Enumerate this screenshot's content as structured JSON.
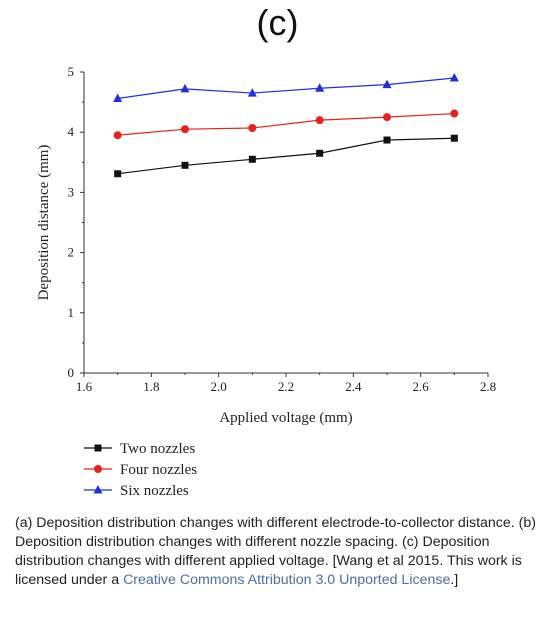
{
  "panel_label": "(c)",
  "chart_data": {
    "type": "line",
    "xlabel": "Applied voltage (mm)",
    "ylabel": "Deposition distance (mm)",
    "xlim": [
      1.6,
      2.8
    ],
    "ylim": [
      0,
      5
    ],
    "xticks": [
      "1.6",
      "1.8",
      "2.0",
      "2.2",
      "2.4",
      "2.6",
      "2.8"
    ],
    "yticks": [
      "0",
      "1",
      "2",
      "3",
      "4",
      "5"
    ],
    "x": [
      1.7,
      1.9,
      2.1,
      2.3,
      2.5,
      2.7
    ],
    "grid": false,
    "legend_position": "bottom-left",
    "series": [
      {
        "name": "Two nozzles",
        "marker": "square",
        "color": "#111111",
        "values": [
          3.31,
          3.45,
          3.55,
          3.65,
          3.87,
          3.9
        ]
      },
      {
        "name": "Four nozzles",
        "marker": "circle",
        "color": "#e8211b",
        "values": [
          3.95,
          4.05,
          4.07,
          4.2,
          4.25,
          4.31
        ]
      },
      {
        "name": "Six nozzles",
        "marker": "triangle",
        "color": "#1f2fe0",
        "values": [
          4.56,
          4.72,
          4.65,
          4.73,
          4.79,
          4.9
        ]
      }
    ]
  },
  "caption": {
    "text": "(a) Deposition distribution changes with different electrode-to-collector distance. (b) Deposition distribution changes with different nozzle spacing. (c) Deposition distribution changes with different applied voltage. [Wang et al 2015. This work is licensed under a ",
    "link": "Creative Commons Attribution 3.0 Unported License",
    "tail": ".]"
  }
}
